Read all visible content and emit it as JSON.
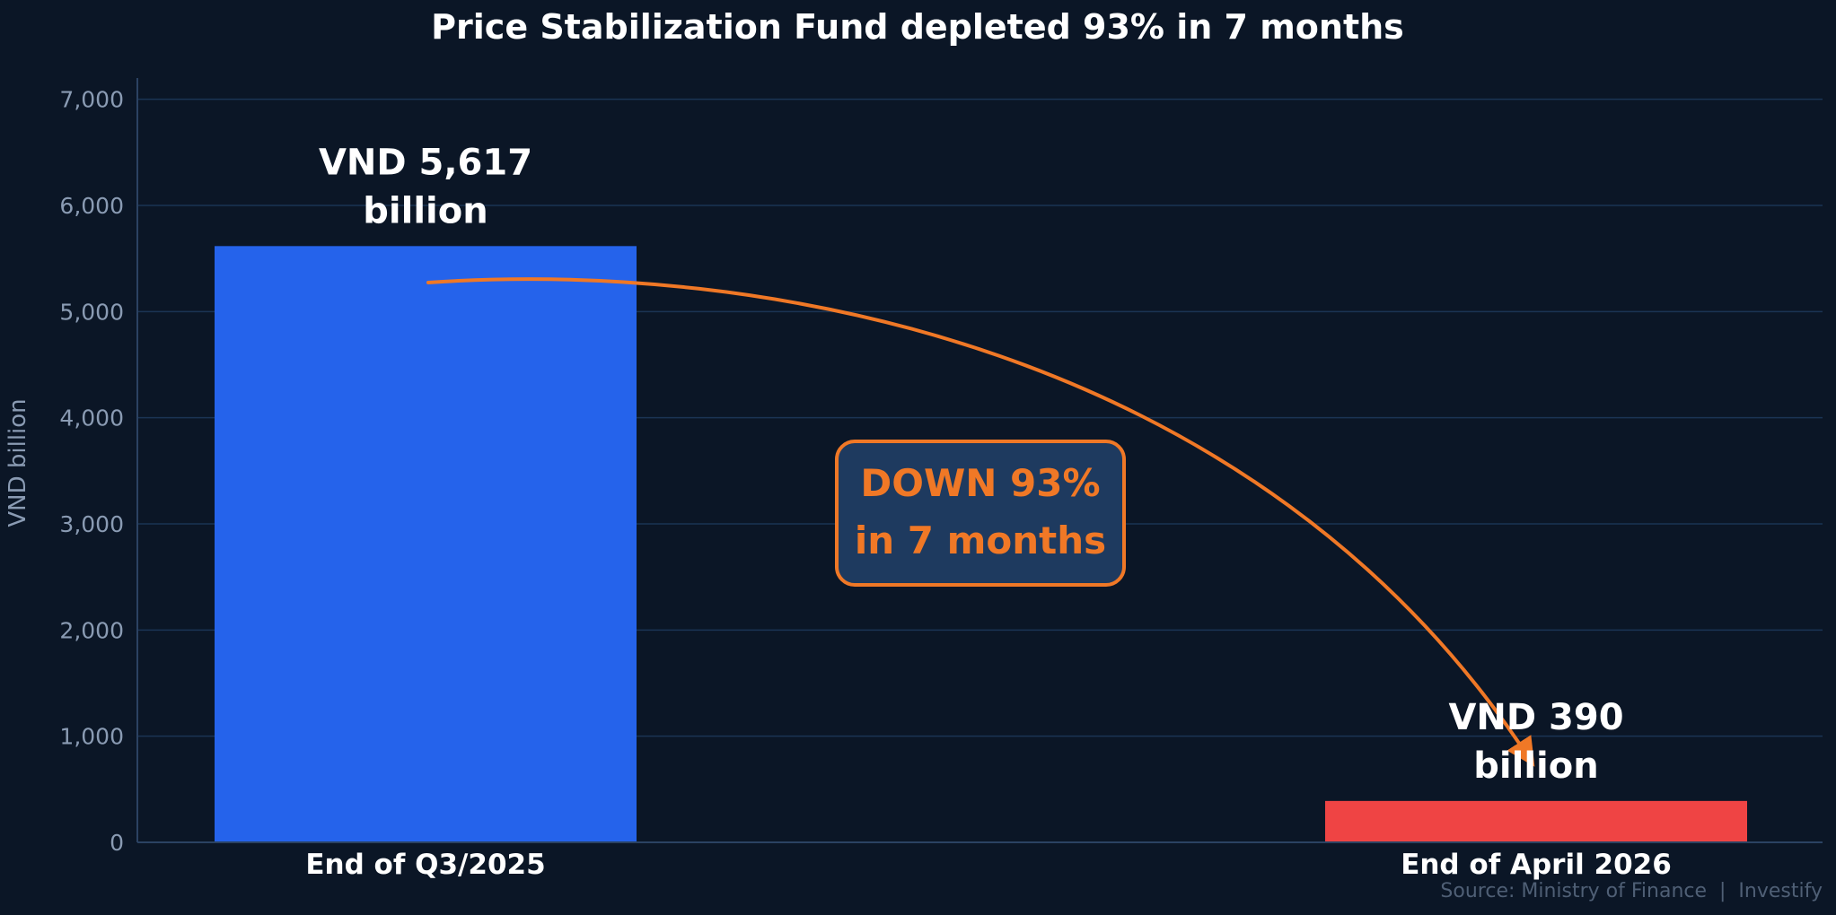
{
  "chart_data": {
    "type": "bar",
    "title": "Price Stabilization Fund depleted 93% in 7 months",
    "xlabel": "",
    "ylabel": "VND billion",
    "ylim": [
      0,
      7200
    ],
    "yticks": [
      0,
      1000,
      2000,
      3000,
      4000,
      5000,
      6000,
      7000
    ],
    "ytick_labels": [
      "0",
      "1,000",
      "2,000",
      "3,000",
      "4,000",
      "5,000",
      "6,000",
      "7,000"
    ],
    "categories": [
      "End of Q3/2025",
      "End of April 2026"
    ],
    "values": [
      5617,
      390
    ],
    "bar_colors": [
      "#2563eb",
      "#ef4444"
    ],
    "data_labels": [
      [
        "VND 5,617",
        "billion"
      ],
      [
        "VND 390",
        "billion"
      ]
    ],
    "grid": true,
    "annotation": {
      "lines": [
        "DOWN 93%",
        "in 7 months"
      ],
      "color": "#f07826",
      "box_fill": "#1e3a5f"
    },
    "source": "Source: Ministry of Finance  |  Investify",
    "colors": {
      "background": "#0b1626",
      "grid": "#1b3454",
      "axis": "#2b4262",
      "tick_text": "#8a9bb3",
      "title_text": "#ffffff",
      "label_text": "#ffffff",
      "source_text": "#4f5f75",
      "arrow": "#f07826"
    }
  }
}
